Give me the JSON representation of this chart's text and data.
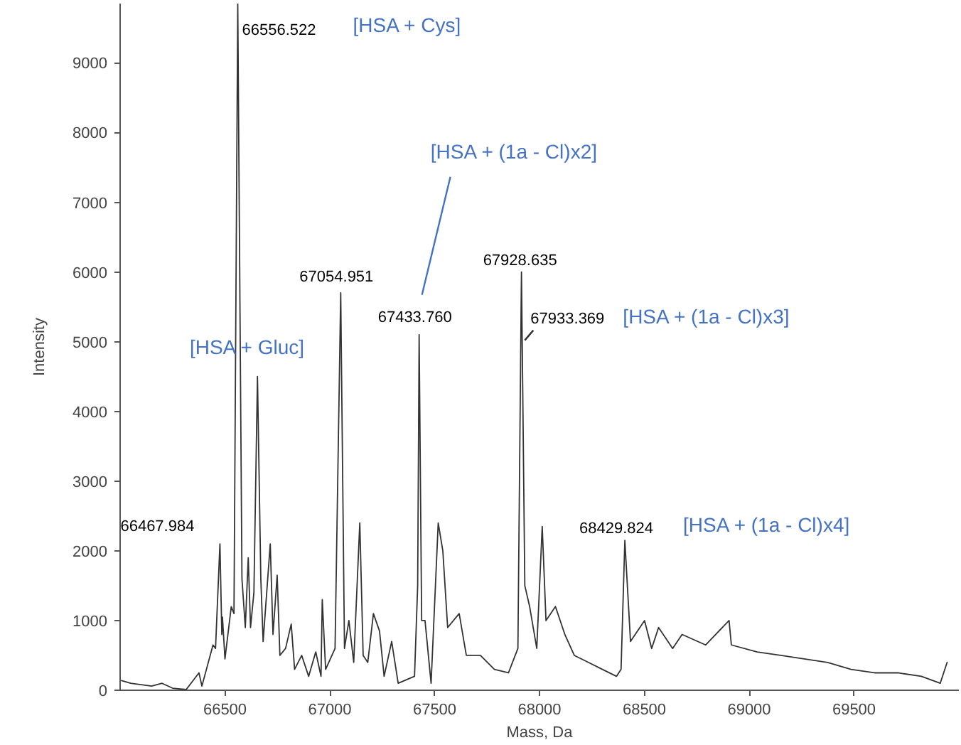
{
  "chart_data": {
    "type": "line",
    "xlabel": "Mass, Da",
    "ylabel": "Intensity",
    "x": [
      66007,
      66050,
      66100,
      66150,
      66200,
      66250,
      66315,
      66376,
      66390,
      66443,
      66455,
      66476,
      66485,
      66488,
      66500,
      66530,
      66543,
      66561,
      66581,
      66597,
      66611,
      66622,
      66638,
      66655,
      66671,
      66682,
      66716,
      66729,
      66749,
      66762,
      66789,
      66816,
      66832,
      66866,
      66899,
      66933,
      66958,
      66964,
      66980,
      67025,
      67052,
      67070,
      67091,
      67114,
      67143,
      67159,
      67181,
      67208,
      67237,
      67259,
      67295,
      67326,
      67404,
      67419,
      67426,
      67438,
      67454,
      67483,
      67517,
      67539,
      67562,
      67617,
      67651,
      67718,
      67785,
      67852,
      67897,
      67914,
      67930,
      67953,
      67987,
      68013,
      68031,
      68076,
      68121,
      68166,
      68233,
      68300,
      68367,
      68389,
      68407,
      68434,
      68501,
      68535,
      68568,
      68635,
      68680,
      68792,
      68904,
      68915,
      69038,
      69150,
      69262,
      69374,
      69486,
      69597,
      69709,
      69821,
      69911,
      69944
    ],
    "series": [
      {
        "color": "#333333",
        "values": [
          140,
          100,
          80,
          60,
          100,
          30,
          10,
          250,
          60,
          650,
          600,
          2100,
          800,
          1050,
          450,
          1200,
          1100,
          9850,
          1600,
          900,
          1900,
          900,
          1400,
          4500,
          1600,
          700,
          2100,
          800,
          1650,
          500,
          600,
          950,
          300,
          500,
          200,
          550,
          200,
          1300,
          300,
          600,
          5700,
          600,
          1000,
          400,
          2400,
          500,
          400,
          1100,
          850,
          200,
          700,
          100,
          200,
          1500,
          5100,
          1000,
          1000,
          100,
          2400,
          2000,
          900,
          1100,
          500,
          500,
          300,
          250,
          600,
          6000,
          1500,
          1200,
          600,
          2350,
          1000,
          1200,
          800,
          500,
          400,
          300,
          200,
          300,
          2150,
          700,
          1000,
          600,
          900,
          600,
          800,
          650,
          1000,
          650,
          550,
          500,
          450,
          400,
          300,
          250,
          250,
          200,
          100,
          400
        ]
      }
    ],
    "xlim": [
      66000,
      70000
    ],
    "ylim": [
      0,
      9850
    ],
    "xticks": [
      66500,
      67000,
      67500,
      68000,
      68500,
      69000,
      69500
    ],
    "yticks": [
      0,
      1000,
      2000,
      3000,
      4000,
      5000,
      6000,
      7000,
      8000,
      9000
    ],
    "grid": false,
    "marker": "none",
    "line_style": "solid",
    "annotations": [
      {
        "text": "66467.984",
        "x": 66476,
        "y": 2100
      },
      {
        "text": "66556.522",
        "x": 66561,
        "y": 9850
      },
      {
        "text": "67054.951",
        "x": 67052,
        "y": 5700
      },
      {
        "text": "67433.760",
        "x": 67426,
        "y": 5100
      },
      {
        "text": "67928.635",
        "x": 67914,
        "y": 6000
      },
      {
        "text": "67933.369",
        "x": 67930,
        "y": 5000
      },
      {
        "text": "68429.824",
        "x": 68407,
        "y": 2150
      },
      "[HSA + Cys]",
      {
        "text": "[HSA + Gluc]",
        "x": 66655,
        "y": 4500
      },
      "[HSA + (1a - Cl)x2]",
      "[HSA + (1a - Cl)x3]",
      {
        "text": "[HSA + (1a - Cl)x4]",
        "x": 68407,
        "y": 2150
      }
    ]
  }
}
